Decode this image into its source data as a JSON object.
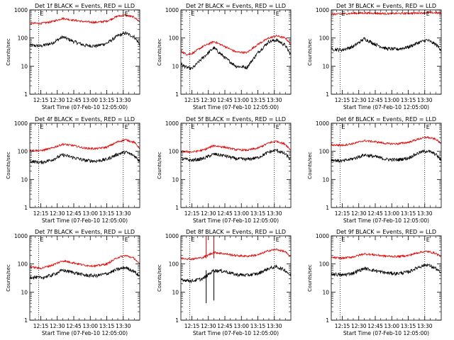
{
  "chart_data": [
    {
      "type": "line",
      "title": "Det 1f BLACK = Events, RED = LLD",
      "xlabel": "Start Time (07-Feb-10 12:05:00)",
      "ylabel": "Counts/sec",
      "yscale": "log",
      "ylim": [
        1,
        1000
      ],
      "yticks": [
        "1",
        "10",
        "100",
        "1000"
      ],
      "xticks": [
        "12:15",
        "12:30",
        "12:45",
        "13:00",
        "13:15",
        "13:30"
      ],
      "event_markers": [
        "E",
        "E"
      ],
      "series": [
        {
          "color": "#000000",
          "x": [
            "12:05",
            "12:15",
            "12:25",
            "12:35",
            "12:45",
            "12:55",
            "13:05",
            "13:15",
            "13:25",
            "13:32",
            "13:40",
            "13:45"
          ],
          "values": [
            55,
            52,
            65,
            110,
            75,
            55,
            52,
            65,
            120,
            150,
            110,
            60
          ]
        },
        {
          "color": "#e00000",
          "x": [
            "12:05",
            "12:15",
            "12:25",
            "12:35",
            "12:45",
            "12:55",
            "13:05",
            "13:15",
            "13:25",
            "13:32",
            "13:40",
            "13:45"
          ],
          "values": [
            340,
            330,
            380,
            500,
            430,
            380,
            360,
            400,
            600,
            650,
            550,
            380
          ]
        }
      ]
    },
    {
      "type": "line",
      "title": "Det 2f BLACK = Events, RED = LLD",
      "xlabel": "Start Time (07-Feb-10 12:05:00)",
      "ylabel": "Counts/sec",
      "yscale": "log",
      "ylim": [
        1,
        1000
      ],
      "yticks": [
        "1",
        "10",
        "100",
        "1000"
      ],
      "xticks": [
        "12:15",
        "12:30",
        "12:45",
        "13:00",
        "13:15",
        "13:30"
      ],
      "event_markers": [
        "E",
        "E"
      ],
      "series": [
        {
          "color": "#000000",
          "x": [
            "12:05",
            "12:10",
            "12:15",
            "12:25",
            "12:35",
            "12:45",
            "12:55",
            "13:05",
            "13:15",
            "13:25",
            "13:32",
            "13:40",
            "13:45"
          ],
          "values": [
            12,
            9,
            8,
            20,
            45,
            20,
            10,
            9,
            30,
            75,
            85,
            55,
            25
          ]
        },
        {
          "color": "#e00000",
          "x": [
            "12:05",
            "12:10",
            "12:15",
            "12:25",
            "12:35",
            "12:45",
            "12:55",
            "13:05",
            "13:15",
            "13:25",
            "13:32",
            "13:40",
            "13:45"
          ],
          "values": [
            35,
            26,
            28,
            50,
            75,
            50,
            32,
            30,
            60,
            100,
            120,
            100,
            60
          ]
        }
      ]
    },
    {
      "type": "line",
      "title": "Det 3f BLACK = Events, RED = LLD",
      "xlabel": "Start Time (07-Feb-10 12:05:00)",
      "ylabel": "Counts/sec",
      "yscale": "log",
      "ylim": [
        1,
        1000
      ],
      "yticks": [
        "1",
        "10",
        "100",
        "1000"
      ],
      "xticks": [
        "12:15",
        "12:30",
        "12:45",
        "13:00",
        "13:15",
        "13:30"
      ],
      "event_markers": [
        "E",
        "E"
      ],
      "series": [
        {
          "color": "#000000",
          "x": [
            "12:05",
            "12:15",
            "12:25",
            "12:35",
            "12:45",
            "12:55",
            "13:05",
            "13:15",
            "13:25",
            "13:32",
            "13:40",
            "13:45"
          ],
          "values": [
            40,
            38,
            50,
            95,
            60,
            42,
            40,
            48,
            70,
            85,
            60,
            38
          ]
        },
        {
          "color": "#e00000",
          "x": [
            "12:05",
            "12:15",
            "12:25",
            "12:35",
            "12:45",
            "12:55",
            "13:05",
            "13:15",
            "13:25",
            "13:32",
            "13:40",
            "13:45"
          ],
          "values": [
            700,
            720,
            760,
            780,
            760,
            740,
            750,
            760,
            780,
            800,
            790,
            760
          ]
        }
      ]
    },
    {
      "type": "line",
      "title": "Det 4f BLACK = Events, RED = LLD",
      "xlabel": "Start Time (07-Feb-10 12:05:00)",
      "ylabel": "Counts/sec",
      "yscale": "log",
      "ylim": [
        1,
        1000
      ],
      "yticks": [
        "1",
        "10",
        "100",
        "1000"
      ],
      "xticks": [
        "12:15",
        "12:30",
        "12:45",
        "13:00",
        "13:15",
        "13:30"
      ],
      "event_markers": [
        "E",
        "E"
      ],
      "series": [
        {
          "color": "#000000",
          "x": [
            "12:05",
            "12:15",
            "12:25",
            "12:35",
            "12:45",
            "12:55",
            "13:05",
            "13:15",
            "13:25",
            "13:32",
            "13:40",
            "13:45"
          ],
          "values": [
            45,
            40,
            50,
            75,
            60,
            48,
            45,
            52,
            80,
            95,
            70,
            45
          ]
        },
        {
          "color": "#e00000",
          "x": [
            "12:05",
            "12:15",
            "12:25",
            "12:35",
            "12:45",
            "12:55",
            "13:05",
            "13:15",
            "13:25",
            "13:32",
            "13:40",
            "13:45"
          ],
          "values": [
            110,
            105,
            130,
            180,
            160,
            130,
            125,
            140,
            220,
            260,
            210,
            130
          ]
        }
      ]
    },
    {
      "type": "line",
      "title": "Det 5f BLACK = Events, RED = LLD",
      "xlabel": "Start Time (07-Feb-10 12:05:00)",
      "ylabel": "Counts/sec",
      "yscale": "log",
      "ylim": [
        1,
        1000
      ],
      "yticks": [
        "1",
        "10",
        "100",
        "1000"
      ],
      "xticks": [
        "12:15",
        "12:30",
        "12:45",
        "13:00",
        "13:15",
        "13:30"
      ],
      "event_markers": [
        "E",
        "E"
      ],
      "series": [
        {
          "color": "#000000",
          "x": [
            "12:05",
            "12:15",
            "12:25",
            "12:35",
            "12:45",
            "12:55",
            "13:05",
            "13:15",
            "13:25",
            "13:32",
            "13:40",
            "13:45"
          ],
          "values": [
            55,
            48,
            55,
            80,
            70,
            55,
            52,
            60,
            95,
            110,
            80,
            50
          ]
        },
        {
          "color": "#e00000",
          "x": [
            "12:05",
            "12:15",
            "12:25",
            "12:35",
            "12:45",
            "12:55",
            "13:05",
            "13:15",
            "13:25",
            "13:32",
            "13:40",
            "13:45"
          ],
          "values": [
            100,
            95,
            110,
            160,
            140,
            115,
            110,
            130,
            200,
            230,
            180,
            110
          ]
        }
      ]
    },
    {
      "type": "line",
      "title": "Det 6f BLACK = Events, RED = LLD",
      "xlabel": "Start Time (07-Feb-10 12:05:00)",
      "ylabel": "Counts/sec",
      "yscale": "log",
      "ylim": [
        1,
        1000
      ],
      "yticks": [
        "1",
        "10",
        "100",
        "1000"
      ],
      "xticks": [
        "12:15",
        "12:30",
        "12:45",
        "13:00",
        "13:15",
        "13:30"
      ],
      "event_markers": [
        "E",
        "E"
      ],
      "series": [
        {
          "color": "#000000",
          "x": [
            "12:05",
            "12:15",
            "12:25",
            "12:35",
            "12:45",
            "12:55",
            "13:05",
            "13:15",
            "13:25",
            "13:32",
            "13:40",
            "13:45"
          ],
          "values": [
            50,
            45,
            55,
            75,
            65,
            52,
            50,
            58,
            90,
            105,
            80,
            48
          ]
        },
        {
          "color": "#e00000",
          "x": [
            "12:05",
            "12:15",
            "12:25",
            "12:35",
            "12:45",
            "12:55",
            "13:05",
            "13:15",
            "13:25",
            "13:32",
            "13:40",
            "13:45"
          ],
          "values": [
            170,
            165,
            190,
            240,
            220,
            190,
            185,
            210,
            280,
            320,
            270,
            190
          ]
        }
      ]
    },
    {
      "type": "line",
      "title": "Det 7f BLACK = Events, RED = LLD",
      "xlabel": "Start Time (07-Feb-10 12:05:00)",
      "ylabel": "Counts/sec",
      "yscale": "log",
      "ylim": [
        1,
        1000
      ],
      "yticks": [
        "1",
        "10",
        "100",
        "1000"
      ],
      "xticks": [
        "12:15",
        "12:30",
        "12:45",
        "13:00",
        "13:15",
        "13:30"
      ],
      "event_markers": [
        "E",
        "E"
      ],
      "series": [
        {
          "color": "#000000",
          "x": [
            "12:05",
            "12:15",
            "12:25",
            "12:35",
            "12:45",
            "12:55",
            "13:05",
            "13:15",
            "13:25",
            "13:32",
            "13:40",
            "13:45"
          ],
          "values": [
            35,
            32,
            40,
            60,
            50,
            40,
            38,
            45,
            65,
            75,
            55,
            35
          ]
        },
        {
          "color": "#e00000",
          "x": [
            "12:05",
            "12:15",
            "12:25",
            "12:35",
            "12:45",
            "12:55",
            "13:05",
            "13:15",
            "13:25",
            "13:32",
            "13:40",
            "13:45"
          ],
          "values": [
            80,
            70,
            90,
            130,
            110,
            90,
            85,
            100,
            170,
            200,
            160,
            95
          ]
        }
      ]
    },
    {
      "type": "line",
      "title": "Det 8f BLACK = Events, RED = LLD",
      "xlabel": "Start Time (07-Feb-10 12:05:00)",
      "ylabel": "Counts/sec",
      "yscale": "log",
      "ylim": [
        1,
        1000
      ],
      "yticks": [
        "1",
        "10",
        "100",
        "1000"
      ],
      "xticks": [
        "12:15",
        "12:30",
        "12:45",
        "13:00",
        "13:15",
        "13:30"
      ],
      "event_markers": [
        "E",
        "E"
      ],
      "annotations": "spikes near 12:28 and 12:35",
      "series": [
        {
          "color": "#000000",
          "x": [
            "12:05",
            "12:15",
            "12:25",
            "12:35",
            "12:45",
            "12:55",
            "13:05",
            "13:15",
            "13:25",
            "13:32",
            "13:40",
            "13:45"
          ],
          "values": [
            28,
            25,
            30,
            60,
            55,
            42,
            40,
            45,
            70,
            80,
            60,
            38
          ]
        },
        {
          "color": "#e00000",
          "x": [
            "12:05",
            "12:15",
            "12:25",
            "12:35",
            "12:45",
            "12:55",
            "13:05",
            "13:15",
            "13:25",
            "13:32",
            "13:40",
            "13:45"
          ],
          "values": [
            160,
            150,
            170,
            260,
            230,
            200,
            190,
            210,
            300,
            330,
            270,
            170
          ]
        }
      ]
    },
    {
      "type": "line",
      "title": "Det 9f BLACK = Events, RED = LLD",
      "xlabel": "Start Time (07-Feb-10 12:05:00)",
      "ylabel": "Counts/sec",
      "yscale": "log",
      "ylim": [
        1,
        1000
      ],
      "yticks": [
        "1",
        "10",
        "100",
        "1000"
      ],
      "xticks": [
        "12:15",
        "12:30",
        "12:45",
        "13:00",
        "13:15",
        "13:30"
      ],
      "event_markers": [
        "E",
        "E"
      ],
      "series": [
        {
          "color": "#000000",
          "x": [
            "12:05",
            "12:15",
            "12:25",
            "12:35",
            "12:45",
            "12:55",
            "13:05",
            "13:15",
            "13:25",
            "13:32",
            "13:40",
            "13:45"
          ],
          "values": [
            45,
            40,
            48,
            70,
            58,
            48,
            46,
            52,
            80,
            95,
            70,
            45
          ]
        },
        {
          "color": "#e00000",
          "x": [
            "12:05",
            "12:15",
            "12:25",
            "12:35",
            "12:45",
            "12:55",
            "13:05",
            "13:15",
            "13:25",
            "13:32",
            "13:40",
            "13:45"
          ],
          "values": [
            170,
            160,
            180,
            230,
            210,
            190,
            185,
            200,
            260,
            280,
            240,
            180
          ]
        }
      ]
    }
  ]
}
